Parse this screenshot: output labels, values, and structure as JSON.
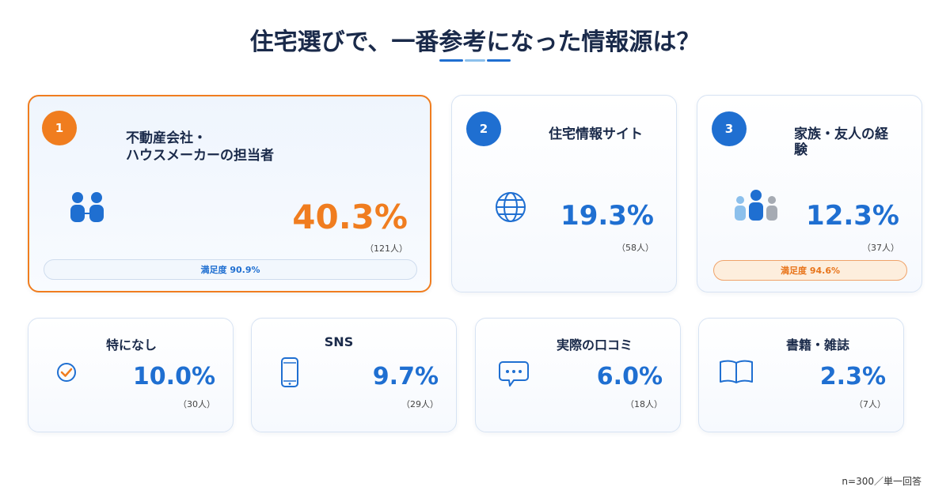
{
  "title": "住宅選びで、一番参考になった情報源は？",
  "footnote": "n=300／単一回答",
  "colors": {
    "navy": "#1a2a4a",
    "blue": "#1f6fd1",
    "orange": "#f07d1f",
    "light_blue": "#8cc0ec"
  },
  "chart_data": {
    "type": "bar",
    "title": "住宅選びで、一番参考になった情報源は？",
    "categories": [
      "不動産会社・ハウスメーカーの担当者",
      "住宅情報サイト",
      "家族・友人の経験",
      "特になし",
      "SNS",
      "実際の口コミ",
      "書籍・雑誌"
    ],
    "values": [
      40.3,
      19.3,
      12.3,
      10.0,
      9.7,
      6.0,
      2.3
    ],
    "counts": [
      121,
      58,
      37,
      30,
      29,
      18,
      7
    ]
  },
  "cards": [
    {
      "rank": "1",
      "label_line1": "不動産会社・",
      "label_line2": "ハウスメーカーの担当者",
      "percent": "40.3%",
      "count": "（121人）",
      "satisfaction": "満足度 90.9%",
      "icon": "people-icon"
    },
    {
      "rank": "2",
      "label": "住宅情報サイト",
      "percent": "19.3%",
      "count": "（58人）",
      "icon": "globe-icon"
    },
    {
      "rank": "3",
      "label_line1": "家族・友人の経",
      "label_line2": "験",
      "percent": "12.3%",
      "count": "（37人）",
      "satisfaction": "満足度 94.6%",
      "icon": "family-icon"
    },
    {
      "label": "特になし",
      "percent": "10.0%",
      "count": "（30人）",
      "icon": "check-icon"
    },
    {
      "label": "SNS",
      "percent": "9.7%",
      "count": "（29人）",
      "icon": "smartphone-icon"
    },
    {
      "label": "実際の口コミ",
      "percent": "6.0%",
      "count": "（18人）",
      "icon": "chat-bubble-icon"
    },
    {
      "label": "書籍・雑誌",
      "percent": "2.3%",
      "count": "（7人）",
      "icon": "book-icon"
    }
  ]
}
